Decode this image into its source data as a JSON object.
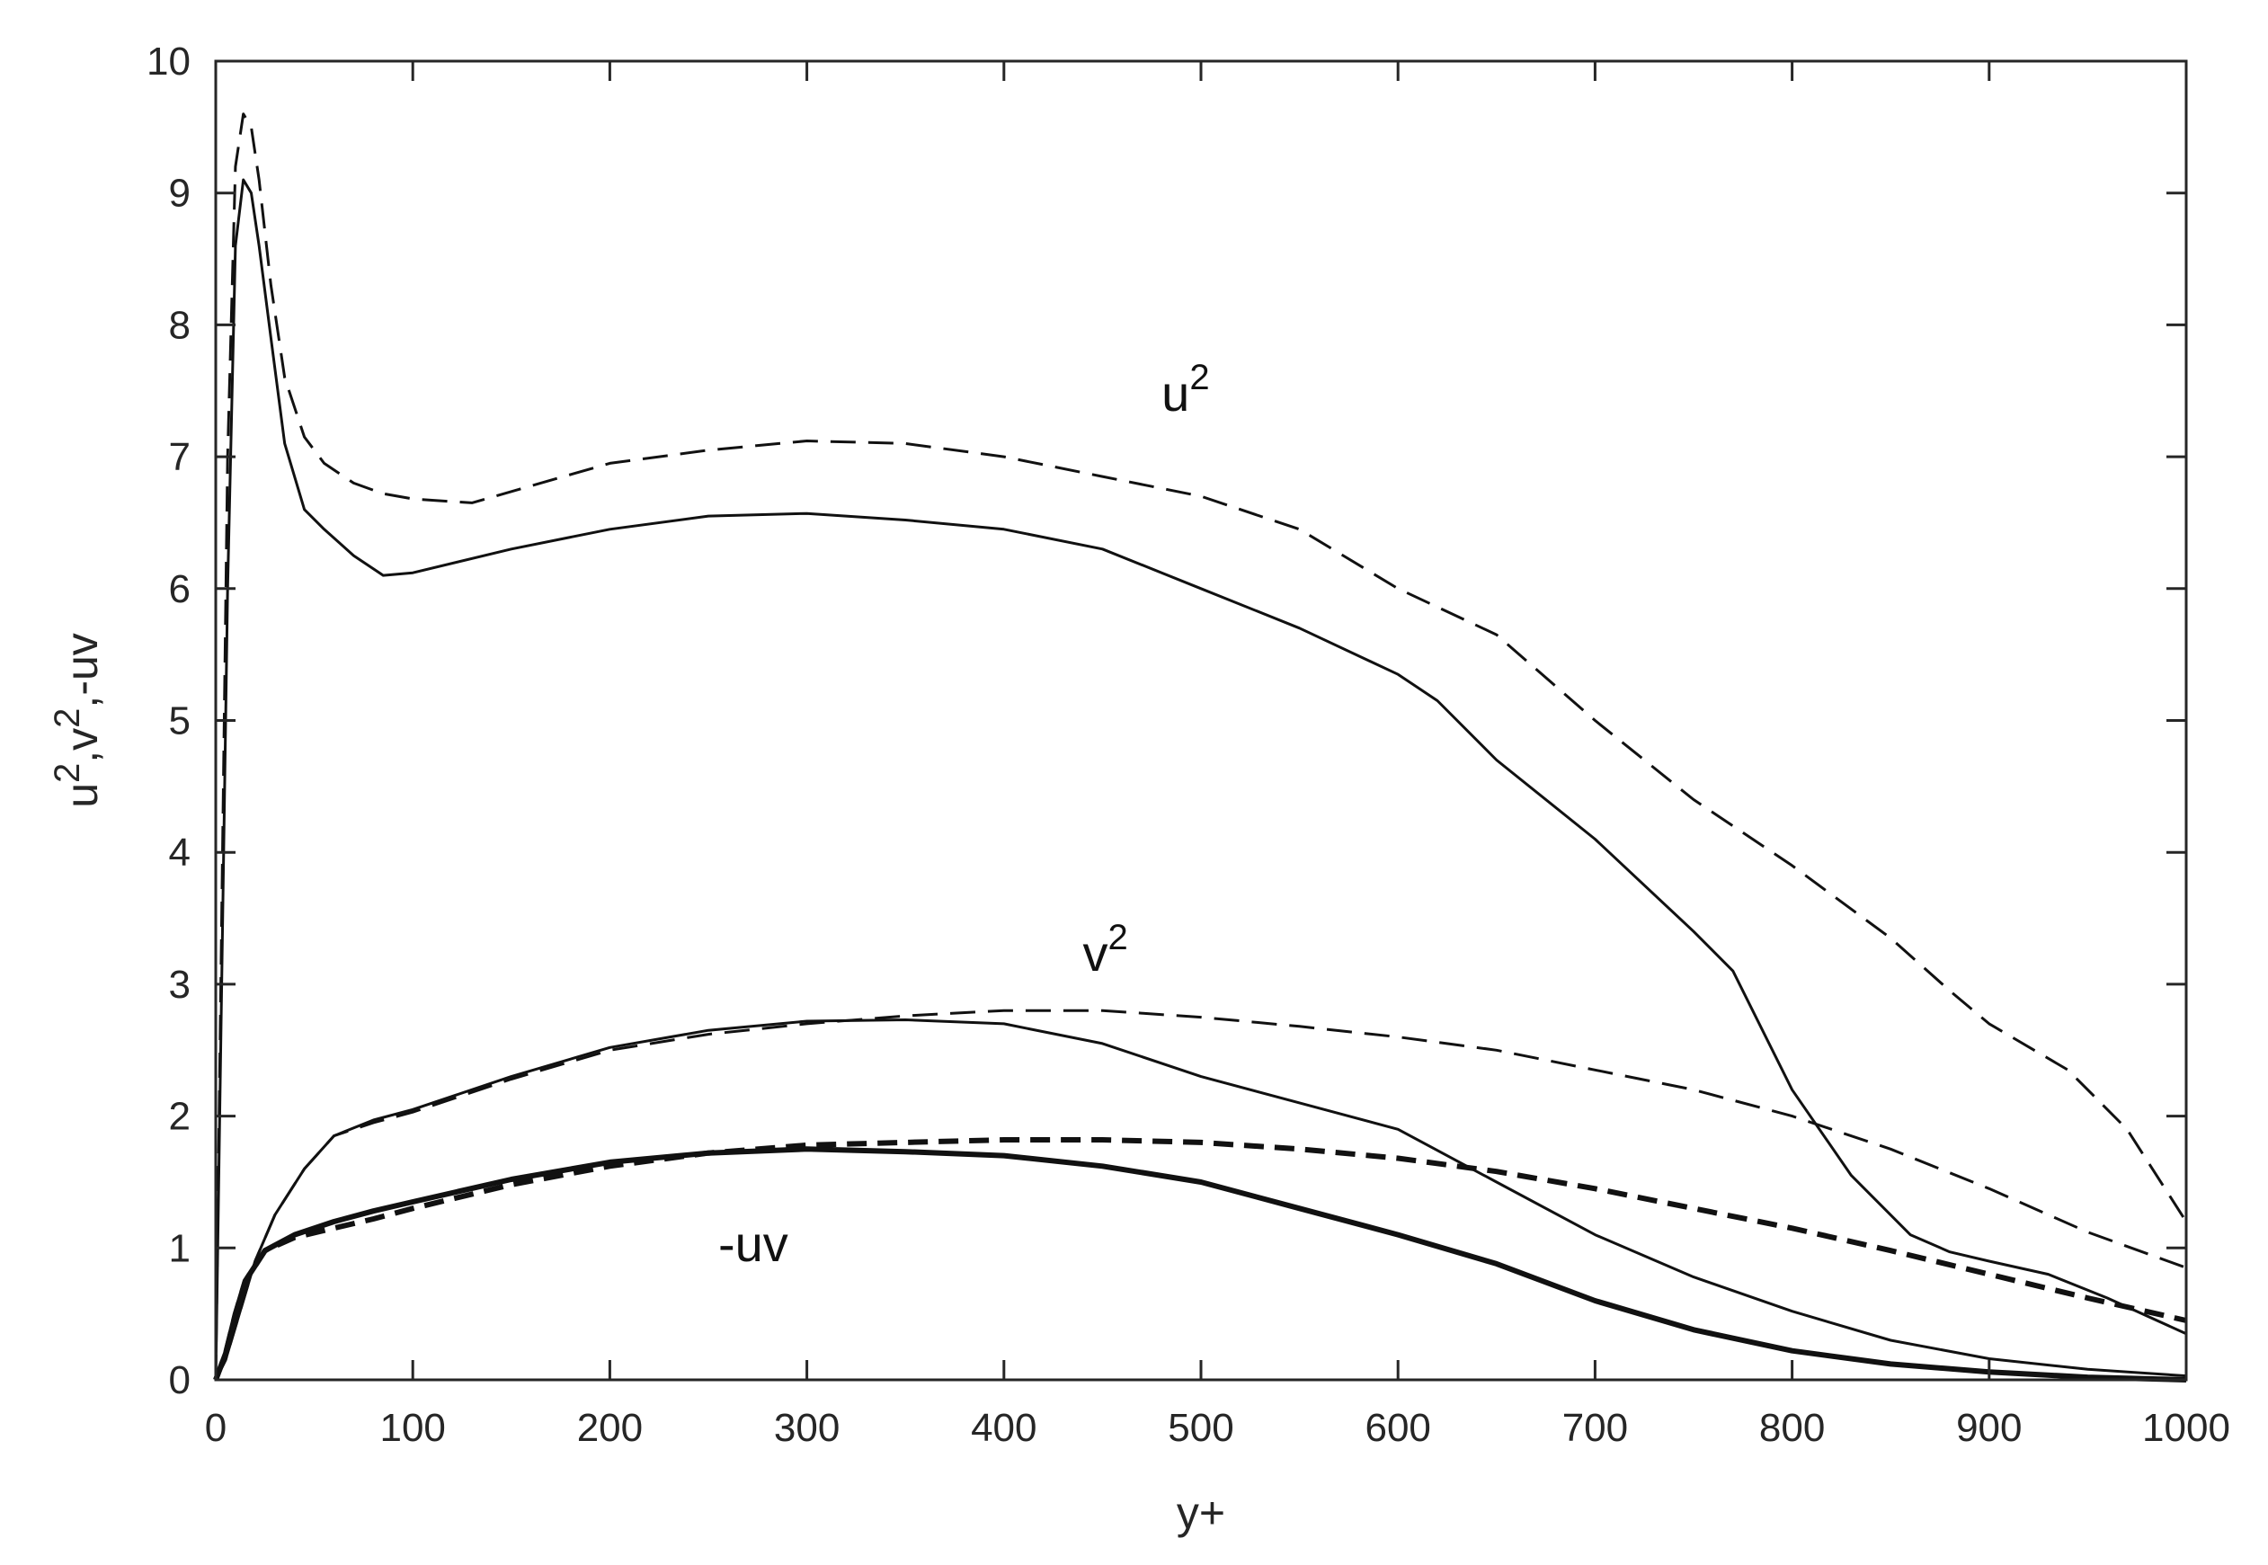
{
  "chart_data": {
    "type": "line",
    "title": "",
    "xlabel": "y+",
    "ylabel_parts": {
      "u": "u",
      "sup1": "2",
      "comma1": ",v",
      "sup2": "2",
      "rest": ",-uv"
    },
    "xlim": [
      0,
      1000
    ],
    "ylim": [
      0,
      10
    ],
    "xticks": [
      "0",
      "100",
      "200",
      "300",
      "400",
      "500",
      "600",
      "700",
      "800",
      "900",
      "1000"
    ],
    "yticks": [
      "0",
      "1",
      "2",
      "3",
      "4",
      "5",
      "6",
      "7",
      "8",
      "9",
      "10"
    ],
    "grid": false,
    "annotations": [
      {
        "name": "annot-u2",
        "base": "u",
        "sup": "2",
        "x": 480,
        "y": 7.35
      },
      {
        "name": "annot-v2",
        "base": "v",
        "sup": "2",
        "x": 440,
        "y": 3.1
      },
      {
        "name": "annot-uv",
        "base": "-uv",
        "sup": "",
        "x": 255,
        "y": 0.9
      }
    ],
    "series": [
      {
        "name": "u2-solid",
        "style": "solid",
        "weight": "thin",
        "x": [
          0,
          3,
          6,
          10,
          14,
          18,
          22,
          28,
          35,
          45,
          55,
          70,
          85,
          100,
          150,
          200,
          250,
          300,
          350,
          400,
          450,
          500,
          550,
          600,
          620,
          650,
          700,
          750,
          770,
          800,
          830,
          860,
          880,
          900,
          930,
          960,
          1000
        ],
        "values": [
          0,
          3.0,
          6.0,
          8.6,
          9.1,
          9.0,
          8.6,
          7.9,
          7.1,
          6.6,
          6.45,
          6.25,
          6.1,
          6.12,
          6.3,
          6.45,
          6.55,
          6.57,
          6.52,
          6.45,
          6.3,
          6.0,
          5.7,
          5.35,
          5.15,
          4.7,
          4.1,
          3.4,
          3.1,
          2.2,
          1.55,
          1.1,
          0.97,
          0.9,
          0.8,
          0.62,
          0.35
        ]
      },
      {
        "name": "u2-dashed",
        "style": "dashed",
        "weight": "thin",
        "x": [
          0,
          3,
          6,
          10,
          14,
          18,
          22,
          28,
          35,
          45,
          55,
          70,
          85,
          100,
          130,
          200,
          250,
          300,
          350,
          400,
          450,
          500,
          550,
          600,
          650,
          700,
          750,
          800,
          850,
          880,
          900,
          940,
          970,
          1000
        ],
        "values": [
          0,
          3.5,
          7.0,
          9.2,
          9.6,
          9.5,
          9.1,
          8.3,
          7.6,
          7.15,
          6.95,
          6.8,
          6.72,
          6.68,
          6.65,
          6.95,
          7.05,
          7.12,
          7.1,
          7.0,
          6.85,
          6.7,
          6.45,
          6.0,
          5.65,
          5.0,
          4.4,
          3.9,
          3.35,
          2.95,
          2.7,
          2.35,
          1.9,
          1.2
        ]
      },
      {
        "name": "v2-solid",
        "style": "solid",
        "weight": "thin",
        "x": [
          0,
          5,
          10,
          20,
          30,
          45,
          60,
          80,
          100,
          150,
          200,
          250,
          300,
          350,
          400,
          450,
          500,
          550,
          600,
          650,
          700,
          750,
          800,
          850,
          900,
          950,
          1000
        ],
        "values": [
          0,
          0.15,
          0.4,
          0.9,
          1.25,
          1.6,
          1.85,
          1.97,
          2.05,
          2.3,
          2.52,
          2.65,
          2.72,
          2.73,
          2.7,
          2.55,
          2.3,
          2.1,
          1.9,
          1.5,
          1.1,
          0.78,
          0.52,
          0.3,
          0.16,
          0.08,
          0.03
        ]
      },
      {
        "name": "v2-dashed",
        "style": "dashed",
        "weight": "thin",
        "x": [
          0,
          5,
          10,
          20,
          30,
          45,
          60,
          80,
          100,
          150,
          200,
          250,
          300,
          350,
          400,
          450,
          500,
          550,
          600,
          650,
          700,
          750,
          800,
          850,
          900,
          950,
          1000
        ],
        "values": [
          0,
          0.15,
          0.4,
          0.9,
          1.25,
          1.6,
          1.85,
          1.95,
          2.03,
          2.28,
          2.5,
          2.62,
          2.7,
          2.76,
          2.8,
          2.8,
          2.75,
          2.68,
          2.6,
          2.5,
          2.35,
          2.2,
          2.0,
          1.75,
          1.45,
          1.12,
          0.85
        ]
      },
      {
        "name": "uv-solid",
        "style": "solid",
        "weight": "thick",
        "x": [
          0,
          5,
          10,
          15,
          25,
          40,
          60,
          80,
          100,
          150,
          200,
          250,
          300,
          350,
          400,
          450,
          500,
          550,
          600,
          650,
          700,
          750,
          800,
          850,
          900,
          950,
          1000
        ],
        "values": [
          0,
          0.2,
          0.5,
          0.75,
          0.98,
          1.1,
          1.2,
          1.28,
          1.35,
          1.52,
          1.65,
          1.72,
          1.75,
          1.73,
          1.7,
          1.62,
          1.5,
          1.3,
          1.1,
          0.88,
          0.6,
          0.38,
          0.22,
          0.12,
          0.06,
          0.02,
          0.0
        ]
      },
      {
        "name": "uv-dashed",
        "style": "dashed",
        "weight": "thick",
        "x": [
          0,
          5,
          10,
          15,
          25,
          40,
          60,
          80,
          100,
          150,
          200,
          250,
          300,
          350,
          400,
          450,
          500,
          550,
          600,
          650,
          700,
          750,
          800,
          850,
          900,
          950,
          1000
        ],
        "values": [
          0,
          0.2,
          0.5,
          0.75,
          0.98,
          1.08,
          1.15,
          1.22,
          1.3,
          1.48,
          1.62,
          1.72,
          1.78,
          1.8,
          1.82,
          1.82,
          1.8,
          1.75,
          1.68,
          1.58,
          1.45,
          1.3,
          1.15,
          0.98,
          0.8,
          0.62,
          0.45
        ]
      }
    ]
  },
  "colors": {
    "axis": "#262626",
    "line": "#111111",
    "background": "#ffffff"
  }
}
